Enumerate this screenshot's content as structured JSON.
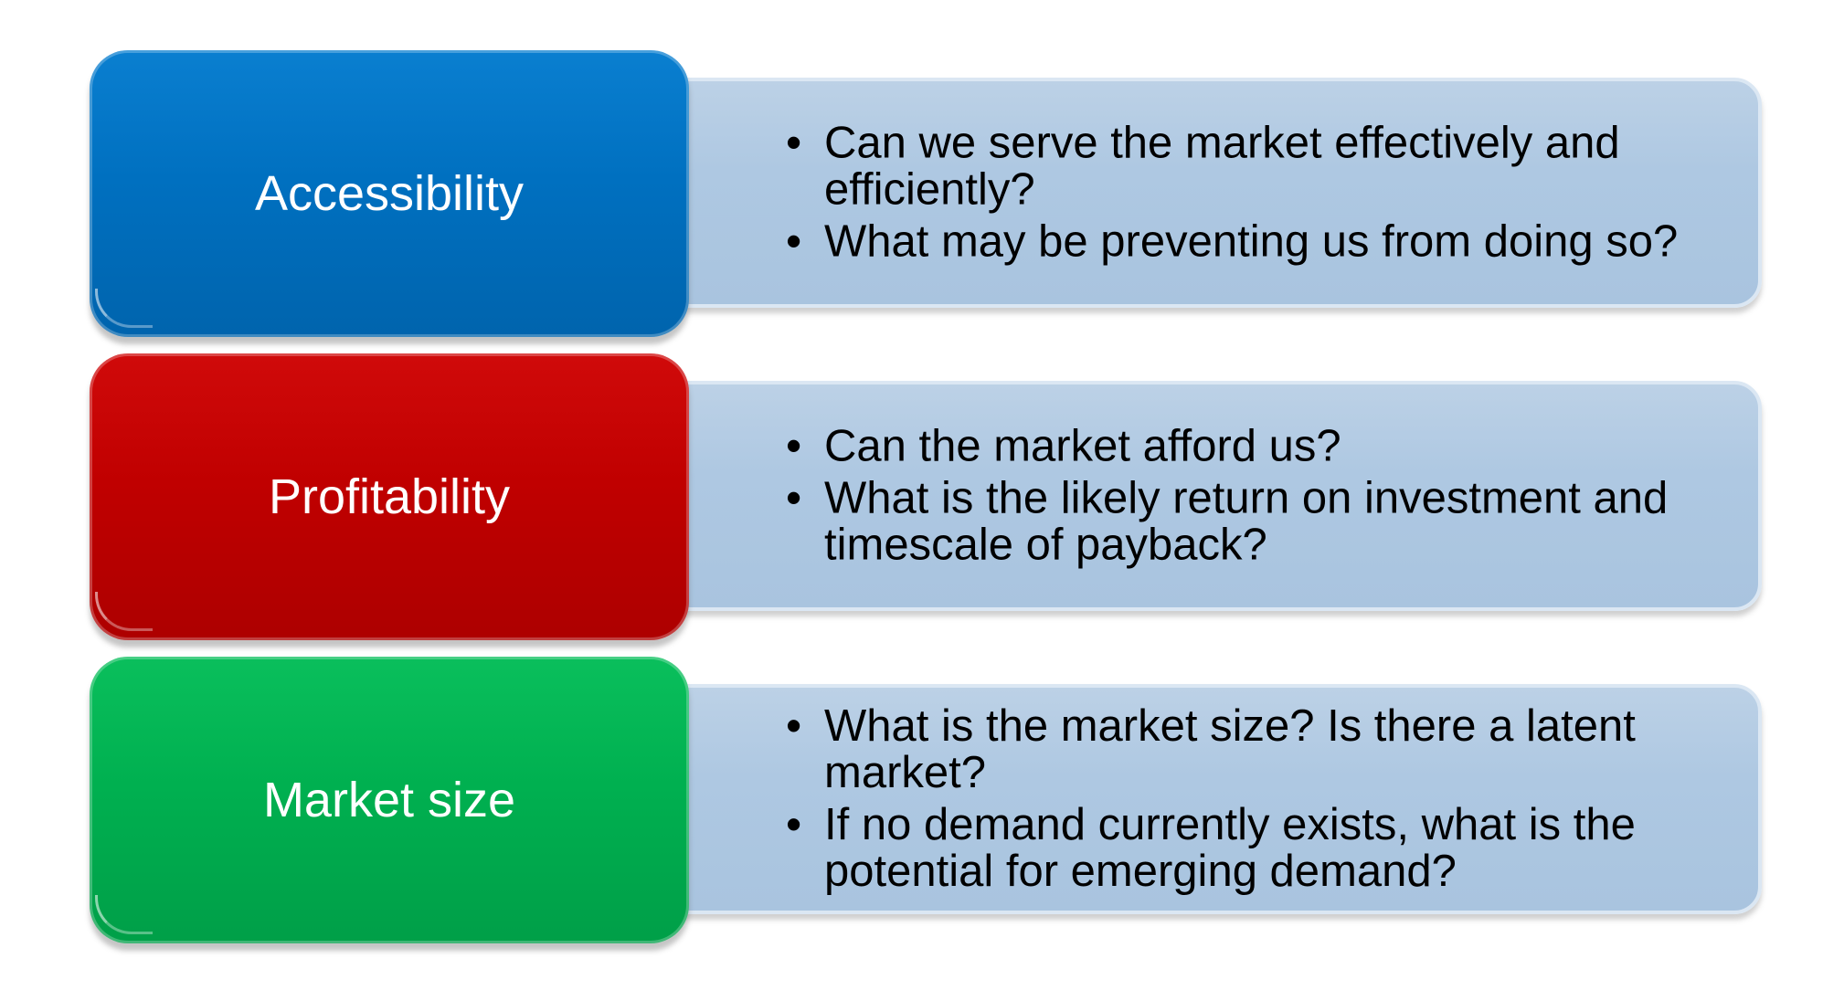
{
  "rows": [
    {
      "label": "Accessibility",
      "color": "#0070c0",
      "bullets": [
        "Can we serve the market effectively and efficiently?",
        "What may be preventing us from doing so?"
      ]
    },
    {
      "label": "Profitability",
      "color": "#c00000",
      "bullets": [
        "Can the market afford us?",
        "What is the likely return on investment and timescale of payback?"
      ]
    },
    {
      "label": "Market size",
      "color": "#00b050",
      "bullets": [
        "What is the market size? Is there a latent market?",
        "If no demand currently exists, what is the potential for emerging demand?"
      ]
    }
  ],
  "bullet_symbol": "•"
}
